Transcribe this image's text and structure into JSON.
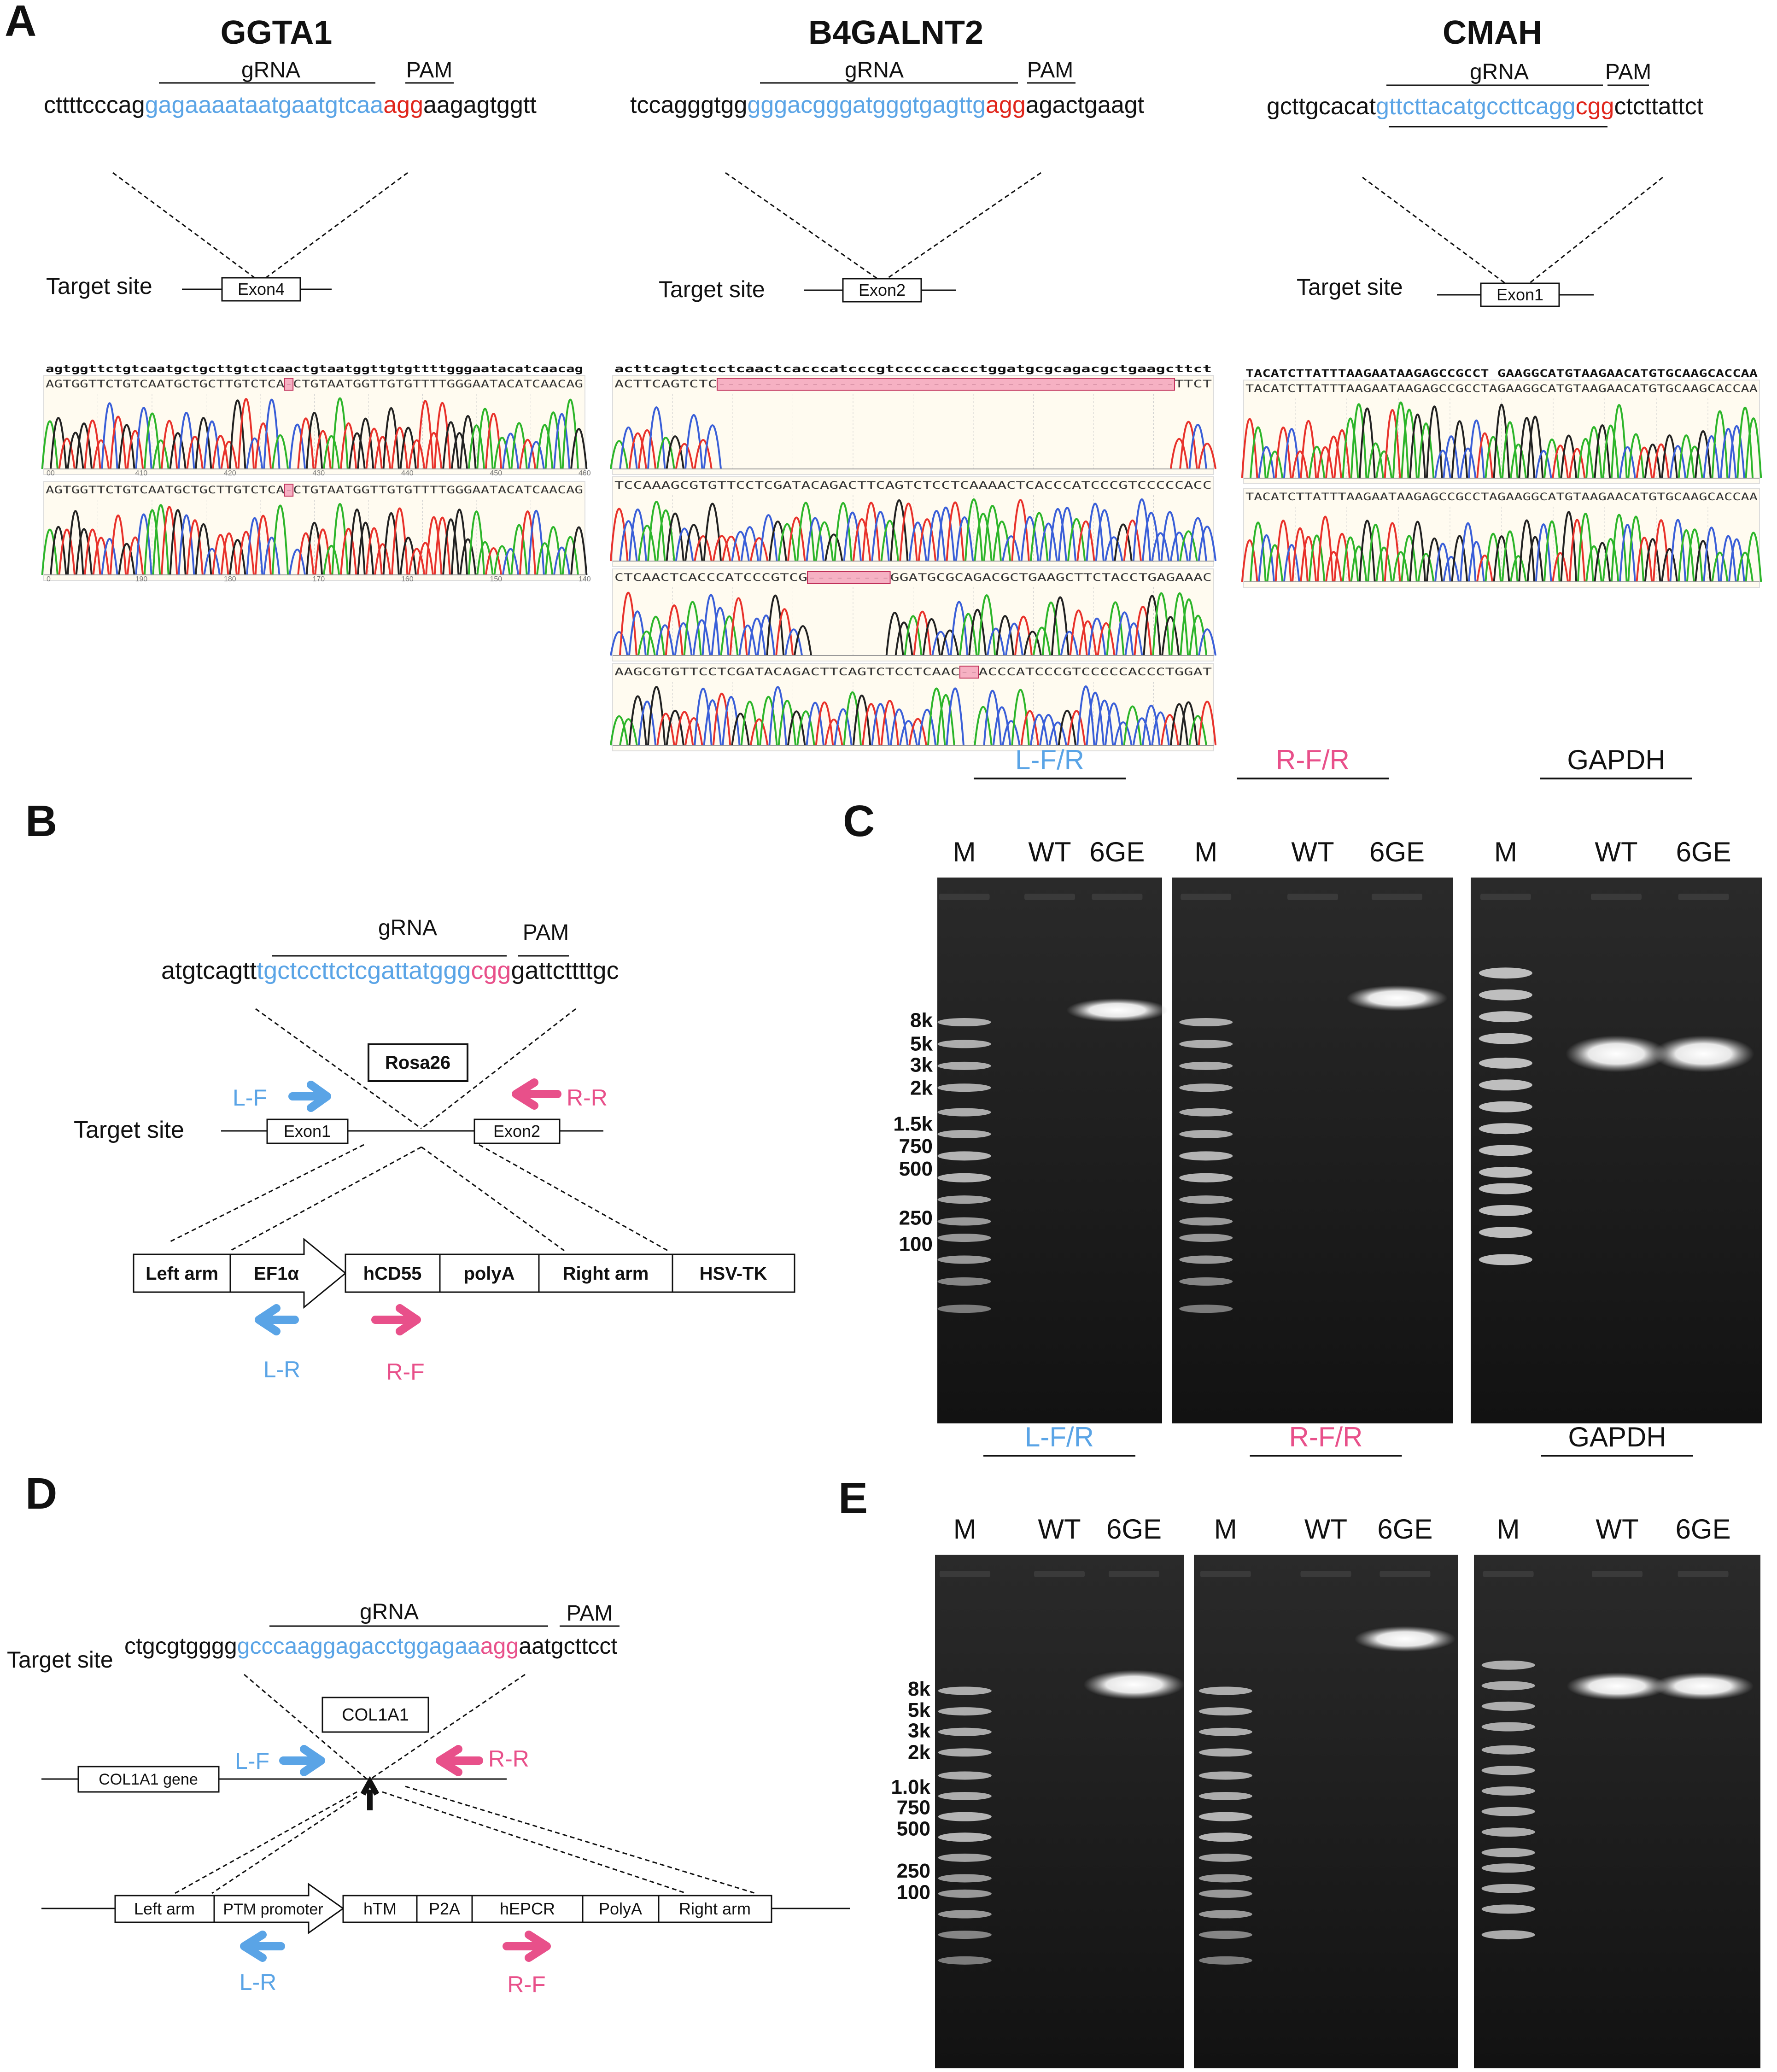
{
  "colors": {
    "grna": "#5aa4e6",
    "pam_red": "#e0251b",
    "pink": "#e8508a",
    "blue_arrow": "#5aa4e6",
    "highlight": "#f4a3bb",
    "chrom_a": "#2db52a",
    "chrom_c": "#3a5fd8",
    "chrom_g": "#222222",
    "chrom_t": "#e8322b",
    "chrom_bg": "#fffbf0",
    "gel_bg": "#1a1a1a"
  },
  "panelA": {
    "label": "A",
    "genes": [
      {
        "name": "GGTA1",
        "grna_label": "gRNA",
        "pam_label": "PAM",
        "seq_pre": "cttttcccag",
        "seq_grna": "gagaaaataatgaatgtcaa",
        "seq_pam": "agg",
        "seq_post": "aagagtggtt",
        "target_label": "Target site",
        "exon": "Exon4",
        "trace_ref": "agtggttctgtcaatgctgcttgtctcaactgtaatggttgtgttttgggaatacatcaacag",
        "trace_rows": [
          {
            "seq": "AGTGGTTCTGTCAATGCTGCTTGTCTCA-CTGTAATGGTTGTGTTTTGGGAATACATCAACAG",
            "ticks": [
              "00",
              "410",
              "420",
              "430",
              "440",
              "450",
              "460"
            ]
          },
          {
            "seq": "AGTGGTTCTGTCAATGCTGCTTGTCTCA-CTGTAATGGTTGTGTTTTGGGAATACATCAACAG",
            "ticks": [
              "0",
              "190",
              "180",
              "170",
              "160",
              "150",
              "140"
            ]
          }
        ]
      },
      {
        "name": "B4GALNT2",
        "grna_label": "gRNA",
        "pam_label": "PAM",
        "seq_pre": "tccagggtgg",
        "seq_grna": "gggacgggatgggtgagttg",
        "seq_pam": "agg",
        "seq_post": "agactgaagt",
        "target_label": "Target site",
        "exon": "Exon2",
        "trace_ref": "acttcagtctcctcaactcacccatcccgtcccccaccctggatgcgcagacgctgaagcttct",
        "trace_rows": [
          {
            "seq": "ACTTCAGTCTC-------------------------------------------------TTCT",
            "ticks": []
          },
          {
            "seq": "TCCAAAGCGTGTTCCTCGATACAGACTTCAGTCTCCTCAAAACTCACCCATCCCGTCCCCCACC",
            "ticks": []
          },
          {
            "seq": "CTCAACTCACCCATCCCGTCG---------GGATGCGCAGACGCTGAAGCTTCTACCTGAGAAAC",
            "ticks": []
          },
          {
            "seq": "AAGCGTGTTCCTCGATACAGACTTCAGTCTCCTCAAC--ACCCATCCCGTCCCCCACCCTGGAT",
            "ticks": []
          }
        ]
      },
      {
        "name": "CMAH",
        "grna_label": "gRNA",
        "pam_label": "PAM",
        "seq_pre": "gcttgcacat",
        "seq_grna": "gttcttacatgccttcagg",
        "seq_pam": "cgg",
        "seq_post": "ctcttattct",
        "target_label": "Target site",
        "exon": "Exon1",
        "trace_ref": "TACATCTTATTTAAGAATAAGAGCCGCCT GAAGGCATGTAAGAACATGTGCAAGCACCAA",
        "trace_rows": [
          {
            "seq": "TACATCTTATTTAAGAATAAGAGCCGCCTAGAAGGCATGTAAGAACATGTGCAAGCACCAA",
            "ticks": []
          },
          {
            "seq": "TACATCTTATTTAAGAATAAGAGCCGCCTAGAAGGCATGTAAGAACATGTGCAAGCACCAA",
            "ticks": []
          }
        ]
      }
    ]
  },
  "panelB": {
    "label": "B",
    "grna_label": "gRNA",
    "pam_label": "PAM",
    "seq_pre": "atgtcagtt",
    "seq_grna": "tgctccttctcgattatggg",
    "seq_pam": "cgg",
    "seq_post": "gattcttttgc",
    "locus": "Rosa26",
    "target_label": "Target site",
    "exon1": "Exon1",
    "exon2": "Exon2",
    "lf": "L-F",
    "rr": "R-R",
    "lr": "L-R",
    "rf": "R-F",
    "construct": {
      "left_arm": "Left arm",
      "promoter": "EF1α",
      "gene": "hCD55",
      "polya": "polyA",
      "right_arm": "Right arm",
      "selection": "HSV-TK"
    }
  },
  "panelC": {
    "label": "C",
    "groups": [
      {
        "title": "L-F/R",
        "lanes": [
          "M",
          "WT",
          "6GE"
        ]
      },
      {
        "title": "R-F/R",
        "lanes": [
          "M",
          "WT",
          "6GE"
        ]
      },
      {
        "title": "GAPDH",
        "lanes": [
          "M",
          "WT",
          "6GE"
        ]
      }
    ],
    "ladder": [
      "8k",
      "5k",
      "3k",
      "2k",
      "1.5k",
      "750",
      "500",
      "250",
      "100"
    ]
  },
  "panelD": {
    "label": "D",
    "grna_label": "gRNA",
    "pam_label": "PAM",
    "seq_pre": "ctgcgtgggg",
    "seq_grna": "gcccaaggagacctggagaa",
    "seq_pam": "agg",
    "seq_post": "aatgcttcct",
    "locus": "COL1A1",
    "target_label": "Target site",
    "gene_box": "COL1A1 gene",
    "lf": "L-F",
    "rr": "R-R",
    "lr": "L-R",
    "rf": "R-F",
    "construct": {
      "left_arm": "Left arm",
      "promoter": "PTM promoter",
      "gene1": "hTM",
      "linker": "P2A",
      "gene2": "hEPCR",
      "polya": "PolyA",
      "right_arm": "Right arm"
    }
  },
  "panelE": {
    "label": "E",
    "groups": [
      {
        "title": "L-F/R",
        "lanes": [
          "M",
          "WT",
          "6GE"
        ]
      },
      {
        "title": "R-F/R",
        "lanes": [
          "M",
          "WT",
          "6GE"
        ]
      },
      {
        "title": "GAPDH",
        "lanes": [
          "M",
          "WT",
          "6GE"
        ]
      }
    ],
    "ladder": [
      "8k",
      "5k",
      "3k",
      "2k",
      "1.0k",
      "750",
      "500",
      "250",
      "100"
    ]
  }
}
